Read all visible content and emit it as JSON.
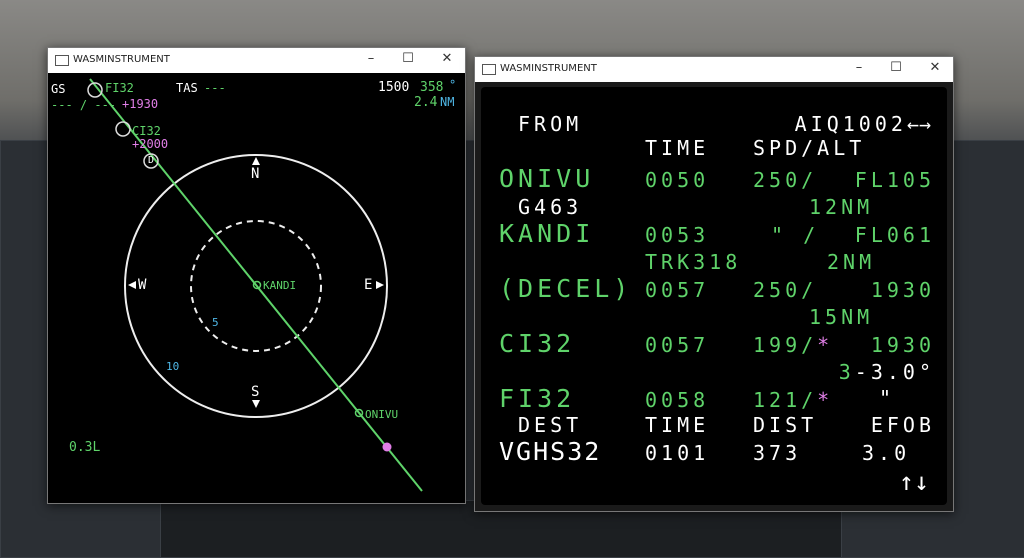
{
  "left_window": {
    "title": "WASMINSTRUMENT",
    "nd": {
      "gs_label": "GS",
      "gs_value": "--- / ---",
      "tas_label": "TAS",
      "tas_dashes": "---",
      "altitude": "1500",
      "heading": "358",
      "heading_unit": "°",
      "distance": "2.4",
      "distance_unit": "NM",
      "waypoints": [
        {
          "name": "FI32",
          "constraint": "+1930"
        },
        {
          "name": "CI32",
          "constraint": "+2000"
        },
        {
          "name": "KANDI"
        },
        {
          "name": "ONIVU"
        }
      ],
      "decel_marker": "D",
      "compass": {
        "n": "N",
        "s": "S",
        "e": "E",
        "w": "W"
      },
      "range_rings": [
        "5",
        "10"
      ],
      "status": "0.3L"
    }
  },
  "right_window": {
    "title": "WASMINSTRUMENT",
    "mcdu": {
      "from_label": "FROM",
      "flight": "AIQ1002",
      "flight_arrows": "←→",
      "headers": {
        "time": "TIME",
        "spd_alt": "SPD/ALT"
      },
      "rows": [
        {
          "wpt": "ONIVU",
          "time": "0050",
          "spd": "250/",
          "alt": "FL105"
        },
        {
          "airway": "G463",
          "dist": "12NM"
        },
        {
          "wpt": "KANDI",
          "time": "0053",
          "spd": "\" /",
          "alt": "FL061"
        },
        {
          "trk": "TRK318",
          "dist": "2NM"
        },
        {
          "wpt": "(DECEL)",
          "time": "0057",
          "spd": "250/",
          "alt": "1930"
        },
        {
          "dist": "15NM"
        },
        {
          "wpt": "CI32",
          "time": "0057",
          "spd": "199/",
          "star": "*",
          "alt": "1930"
        },
        {
          "dist": "3",
          "fpa": "-3.0°"
        },
        {
          "wpt": "FI32",
          "time": "0058",
          "spd": "121/",
          "star": "*",
          "alt": "\""
        }
      ],
      "dest_headers": {
        "dest": "DEST",
        "time": "TIME",
        "dist": "DIST",
        "efob": "EFOB"
      },
      "dest": {
        "name": "VGHS32",
        "time": "0101",
        "dist": "373",
        "efob": "3.0"
      },
      "scroll_arrows": "↑↓"
    }
  },
  "colors": {
    "green": "#5fd36a",
    "magenta": "#e07ee6",
    "cyan": "#4fb7e6",
    "white": "#ffffff"
  }
}
